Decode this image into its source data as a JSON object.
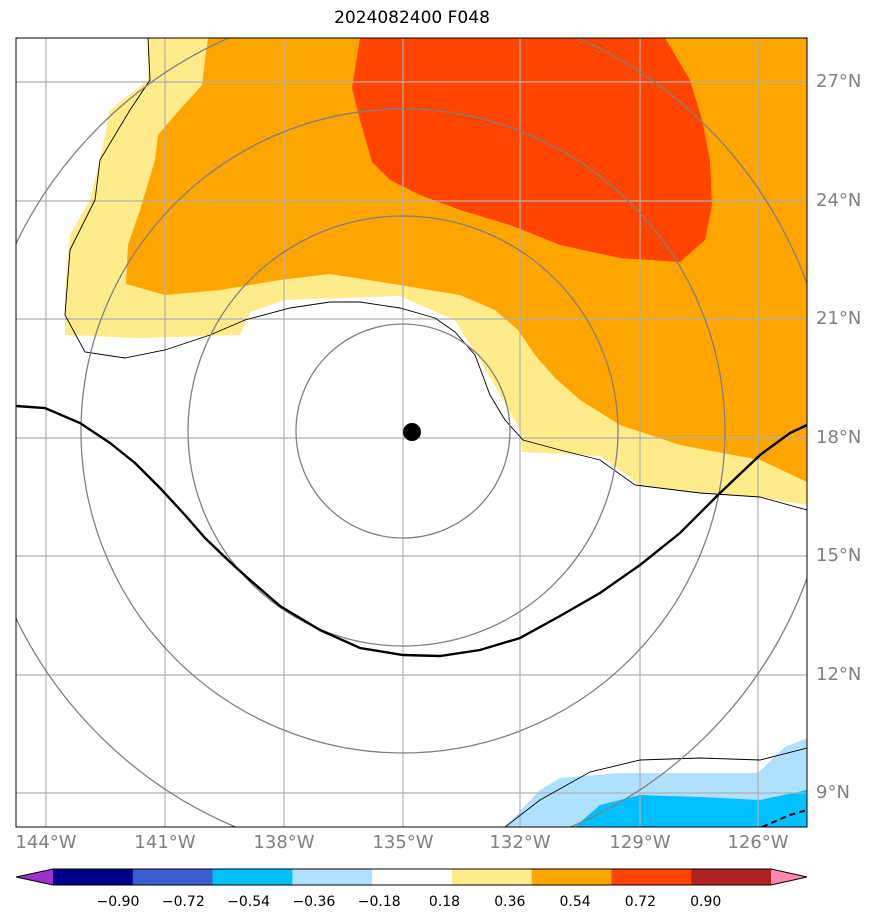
{
  "title": "2024082400 F048",
  "latitude_labels": [
    "27°N",
    "24°N",
    "21°N",
    "18°N",
    "15°N",
    "12°N",
    "9°N"
  ],
  "longitude_labels": [
    "144°W",
    "141°W",
    "138°W",
    "135°W",
    "132°W",
    "129°W",
    "126°W"
  ],
  "center_marker": {
    "lon": -134.8,
    "lat": 18.2
  },
  "colorbar": {
    "ticks": [
      "−0.90",
      "−0.72",
      "−0.54",
      "−0.36",
      "−0.18",
      "0.18",
      "0.36",
      "0.54",
      "0.72",
      "0.90"
    ],
    "colors": [
      "#9932cc",
      "#00008b",
      "#3a5fcd",
      "#00bfff",
      "#b0e0ff",
      "#ffffff",
      "#ffeb8a",
      "#ffa500",
      "#ff4500",
      "#b22222",
      "#ff88b0"
    ],
    "extend": "both"
  },
  "colors": {
    "land_line": "#000000",
    "grid": "#b0b0b0",
    "range_ring": "#808080",
    "track": "#000000"
  }
}
